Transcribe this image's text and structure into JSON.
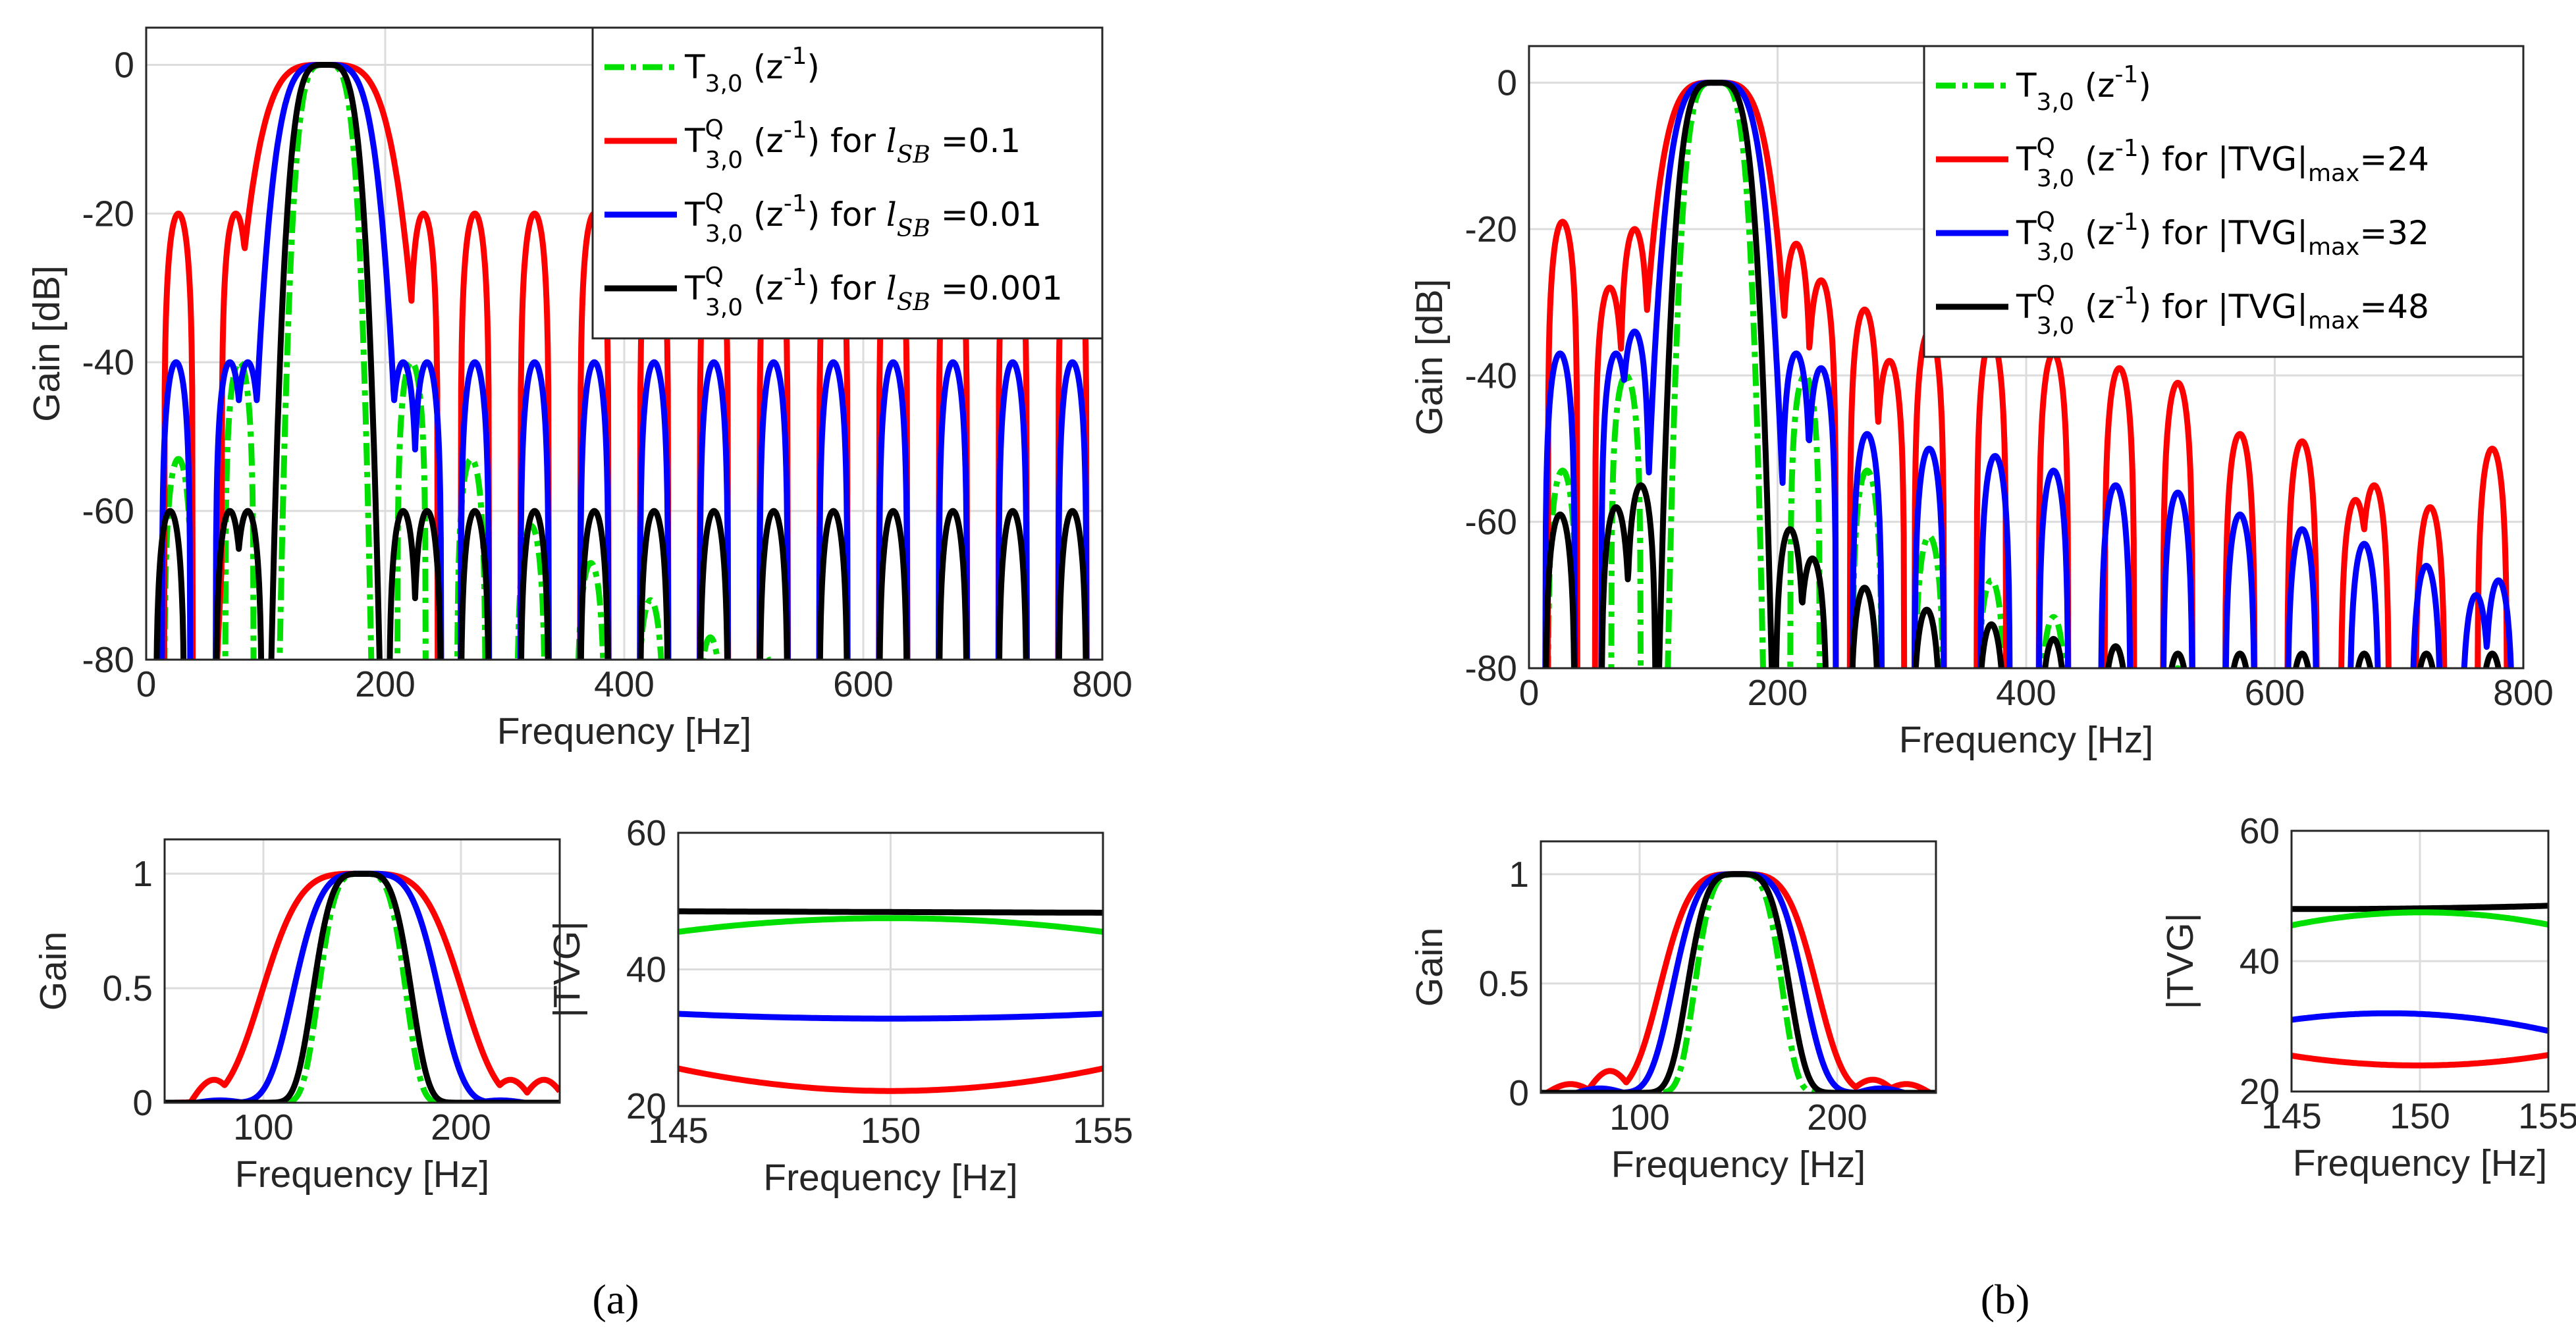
{
  "figure": {
    "panel_labels": [
      "(a)",
      "(b)"
    ]
  },
  "colors": {
    "green": "#00e000",
    "red": "#ff0000",
    "blue": "#0000ff",
    "black": "#000000"
  },
  "chart_data": [
    {
      "type": "line",
      "panel": "a-main",
      "xlabel": "Frequency [Hz]",
      "ylabel": "Gain [dB]",
      "xlim": [
        0,
        800
      ],
      "ylim": [
        -80,
        5
      ],
      "xticks": [
        0,
        200,
        400,
        600,
        800
      ],
      "yticks": [
        0,
        -20,
        -40,
        -60,
        -80
      ],
      "legend": [
        {
          "series": "green",
          "style": "dashdot",
          "main": "T",
          "sub": "3,0",
          "sup": "",
          "tail": " (z",
          "tailsup": "-1",
          "end": ")"
        },
        {
          "series": "red",
          "style": "solid",
          "main": "T",
          "sub": "3,0",
          "sup": "Q",
          "tail": " (z",
          "tailsup": "-1",
          "end": ") for ",
          "it": "l",
          "itsub": "SB",
          "value": " =0.1"
        },
        {
          "series": "blue",
          "style": "solid",
          "main": "T",
          "sub": "3,0",
          "sup": "Q",
          "tail": " (z",
          "tailsup": "-1",
          "end": ") for ",
          "it": "l",
          "itsub": "SB",
          "value": " =0.01"
        },
        {
          "series": "black",
          "style": "solid",
          "main": "T",
          "sub": "3,0",
          "sup": "Q",
          "tail": " (z",
          "tailsup": "-1",
          "end": ") for ",
          "it": "l",
          "itsub": "SB",
          "value": " =0.001"
        }
      ],
      "series": [
        {
          "name": "green",
          "kind": "dB",
          "main": [
            150,
            0,
            22
          ],
          "lobes": [
            [
              27,
              -53
            ],
            [
              78,
              -40
            ],
            [
              222,
              -40
            ],
            [
              272,
              -53
            ],
            [
              322,
              -62
            ],
            [
              372,
              -67
            ],
            [
              422,
              -72
            ],
            [
              472,
              -77
            ],
            [
              522,
              -80
            ]
          ]
        },
        {
          "name": "red",
          "kind": "dB",
          "main": [
            150,
            0,
            52
          ],
          "lobes": [
            [
              27,
              -20
            ],
            [
              75,
              -20
            ],
            [
              210,
              -20
            ],
            [
              232,
              -20
            ],
            [
              275,
              -20
            ],
            [
              325,
              -20
            ],
            [
              375,
              -20
            ],
            [
              425,
              -20
            ],
            [
              475,
              -20
            ],
            [
              525,
              -20
            ],
            [
              575,
              -20
            ],
            [
              625,
              -20
            ],
            [
              675,
              -20
            ],
            [
              725,
              -20
            ],
            [
              775,
              -20
            ]
          ]
        },
        {
          "name": "blue",
          "kind": "dB",
          "main": [
            150,
            0,
            38
          ],
          "lobes": [
            [
              25,
              -40
            ],
            [
              70,
              -40
            ],
            [
              85,
              -40
            ],
            [
              215,
              -40
            ],
            [
              235,
              -40
            ],
            [
              275,
              -40
            ],
            [
              325,
              -40
            ],
            [
              375,
              -40
            ],
            [
              425,
              -40
            ],
            [
              475,
              -40
            ],
            [
              525,
              -40
            ],
            [
              575,
              -40
            ],
            [
              625,
              -40
            ],
            [
              675,
              -40
            ],
            [
              725,
              -40
            ],
            [
              775,
              -40
            ]
          ]
        },
        {
          "name": "black",
          "kind": "dB",
          "main": [
            150,
            0,
            26
          ],
          "lobes": [
            [
              20,
              -60
            ],
            [
              70,
              -60
            ],
            [
              85,
              -60
            ],
            [
              215,
              -60
            ],
            [
              235,
              -60
            ],
            [
              275,
              -60
            ],
            [
              325,
              -60
            ],
            [
              375,
              -60
            ],
            [
              425,
              -60
            ],
            [
              475,
              -60
            ],
            [
              525,
              -60
            ],
            [
              575,
              -60
            ],
            [
              625,
              -60
            ],
            [
              675,
              -60
            ],
            [
              725,
              -60
            ],
            [
              775,
              -60
            ]
          ]
        }
      ]
    },
    {
      "type": "line",
      "panel": "b-main",
      "xlabel": "Frequency [Hz]",
      "ylabel": "Gain [dB]",
      "xlim": [
        0,
        800
      ],
      "ylim": [
        -80,
        5
      ],
      "xticks": [
        0,
        200,
        400,
        600,
        800
      ],
      "yticks": [
        0,
        -20,
        -40,
        -60,
        -80
      ],
      "legend": [
        {
          "series": "green",
          "style": "dashdot",
          "main": "T",
          "sub": "3,0",
          "sup": "",
          "tail": " (z",
          "tailsup": "-1",
          "end": ")"
        },
        {
          "series": "red",
          "style": "solid",
          "main": "T",
          "sub": "3,0",
          "sup": "Q",
          "tail": " (z",
          "tailsup": "-1",
          "end": ") for |TVG|",
          "itsub": "max",
          "value": "=24"
        },
        {
          "series": "blue",
          "style": "solid",
          "main": "T",
          "sub": "3,0",
          "sup": "Q",
          "tail": " (z",
          "tailsup": "-1",
          "end": ") for |TVG|",
          "itsub": "max",
          "value": "=32"
        },
        {
          "series": "black",
          "style": "solid",
          "main": "T",
          "sub": "3,0",
          "sup": "Q",
          "tail": " (z",
          "tailsup": "-1",
          "end": ") for |TVG|",
          "itsub": "max",
          "value": "=48"
        }
      ],
      "series": [
        {
          "name": "green",
          "kind": "dB",
          "main": [
            150,
            0,
            22
          ],
          "lobes": [
            [
              27,
              -53
            ],
            [
              78,
              -40
            ],
            [
              222,
              -40
            ],
            [
              272,
              -53
            ],
            [
              322,
              -62
            ],
            [
              372,
              -68
            ],
            [
              422,
              -73
            ],
            [
              472,
              -77
            ],
            [
              522,
              -80
            ]
          ]
        },
        {
          "name": "red",
          "kind": "dB",
          "main": [
            150,
            0,
            40
          ],
          "lobes": [
            [
              27,
              -19
            ],
            [
              65,
              -28
            ],
            [
              85,
              -20
            ],
            [
              215,
              -22
            ],
            [
              235,
              -27
            ],
            [
              270,
              -31
            ],
            [
              290,
              -38
            ],
            [
              322,
              -34
            ],
            [
              372,
              -35
            ],
            [
              422,
              -37
            ],
            [
              475,
              -39
            ],
            [
              522,
              -41
            ],
            [
              572,
              -48
            ],
            [
              622,
              -49
            ],
            [
              665,
              -57
            ],
            [
              680,
              -55
            ],
            [
              725,
              -58
            ],
            [
              775,
              -50
            ]
          ]
        },
        {
          "name": "blue",
          "kind": "dB",
          "main": [
            150,
            0,
            34
          ],
          "lobes": [
            [
              25,
              -37
            ],
            [
              70,
              -37
            ],
            [
              85,
              -34
            ],
            [
              215,
              -37
            ],
            [
              235,
              -39
            ],
            [
              272,
              -48
            ],
            [
              322,
              -50
            ],
            [
              375,
              -51
            ],
            [
              422,
              -53
            ],
            [
              472,
              -55
            ],
            [
              522,
              -56
            ],
            [
              572,
              -59
            ],
            [
              622,
              -61
            ],
            [
              672,
              -63
            ],
            [
              722,
              -66
            ],
            [
              762,
              -70
            ],
            [
              780,
              -68
            ]
          ]
        },
        {
          "name": "black",
          "kind": "dB",
          "main": [
            150,
            0,
            26
          ],
          "lobes": [
            [
              25,
              -59
            ],
            [
              70,
              -58
            ],
            [
              90,
              -55
            ],
            [
              210,
              -61
            ],
            [
              228,
              -65
            ],
            [
              270,
              -69
            ],
            [
              320,
              -72
            ],
            [
              372,
              -74
            ],
            [
              422,
              -76
            ],
            [
              472,
              -77
            ],
            [
              522,
              -78
            ],
            [
              572,
              -78
            ],
            [
              622,
              -78
            ],
            [
              672,
              -78
            ],
            [
              722,
              -78
            ],
            [
              775,
              -78
            ]
          ]
        }
      ]
    },
    {
      "type": "line",
      "panel": "a-gain",
      "xlabel": "Frequency [Hz]",
      "ylabel": "Gain",
      "xlim": [
        50,
        250
      ],
      "ylim": [
        0,
        1.15
      ],
      "xticks": [
        100,
        200
      ],
      "yticks": [
        0,
        0.5,
        1
      ],
      "yticklabels": [
        "0",
        "0.5",
        "1"
      ],
      "series": [
        {
          "name": "green",
          "kind": "lin",
          "main": [
            150,
            1.0,
            24
          ],
          "lobes": []
        },
        {
          "name": "red",
          "kind": "lin",
          "main": [
            150,
            1.0,
            55
          ],
          "lobes": [
            [
              75,
              0.1
            ],
            [
              225,
              0.1
            ],
            [
              242,
              0.1
            ]
          ]
        },
        {
          "name": "blue",
          "kind": "lin",
          "main": [
            152,
            1.0,
            40
          ],
          "lobes": [
            [
              78,
              0.01
            ],
            [
              220,
              0.01
            ]
          ]
        },
        {
          "name": "black",
          "kind": "lin",
          "main": [
            150,
            1.0,
            27
          ],
          "lobes": []
        }
      ]
    },
    {
      "type": "line",
      "panel": "a-tvg",
      "xlabel": "Frequency [Hz]",
      "ylabel": "|TVG|",
      "xlim": [
        145,
        155
      ],
      "ylim": [
        20,
        60
      ],
      "xticks": [
        145,
        150,
        155
      ],
      "yticks": [
        20,
        40,
        60
      ],
      "series": [
        {
          "name": "black",
          "x": [
            145,
            150,
            155
          ],
          "y": [
            48.5,
            48.4,
            48.3
          ]
        },
        {
          "name": "green",
          "x": [
            145,
            150,
            155
          ],
          "y": [
            45.5,
            47.5,
            45.5
          ]
        },
        {
          "name": "blue",
          "x": [
            145,
            150,
            155
          ],
          "y": [
            33.5,
            32.8,
            33.5
          ]
        },
        {
          "name": "red",
          "x": [
            145,
            150,
            155
          ],
          "y": [
            25.5,
            22.2,
            25.5
          ]
        }
      ]
    },
    {
      "type": "line",
      "panel": "b-gain",
      "xlabel": "Frequency [Hz]",
      "ylabel": "Gain",
      "xlim": [
        50,
        250
      ],
      "ylim": [
        0,
        1.15
      ],
      "xticks": [
        100,
        200
      ],
      "yticks": [
        0,
        0.5,
        1
      ],
      "yticklabels": [
        "0",
        "0.5",
        "1"
      ],
      "series": [
        {
          "name": "green",
          "kind": "lin",
          "main": [
            150,
            1.0,
            24
          ],
          "lobes": []
        },
        {
          "name": "red",
          "kind": "lin",
          "main": [
            150,
            1.0,
            43
          ],
          "lobes": [
            [
              65,
              0.04
            ],
            [
              85,
              0.1
            ],
            [
              218,
              0.06
            ],
            [
              235,
              0.04
            ]
          ]
        },
        {
          "name": "blue",
          "kind": "lin",
          "main": [
            150,
            1.0,
            36
          ],
          "lobes": [
            [
              80,
              0.02
            ],
            [
              222,
              0.02
            ]
          ]
        },
        {
          "name": "black",
          "kind": "lin",
          "main": [
            150,
            1.0,
            28
          ],
          "lobes": []
        }
      ]
    },
    {
      "type": "line",
      "panel": "b-tvg",
      "xlabel": "Frequency [Hz]",
      "ylabel": "|TVG|",
      "xlim": [
        145,
        155
      ],
      "ylim": [
        20,
        60
      ],
      "xticks": [
        145,
        150,
        155
      ],
      "yticks": [
        20,
        40,
        60
      ],
      "series": [
        {
          "name": "black",
          "x": [
            145,
            150,
            155
          ],
          "y": [
            48.0,
            48.1,
            48.5
          ]
        },
        {
          "name": "green",
          "x": [
            145,
            149,
            155
          ],
          "y": [
            45.5,
            47.4,
            45.6
          ]
        },
        {
          "name": "blue",
          "x": [
            145,
            149,
            155
          ],
          "y": [
            31.0,
            32.0,
            29.3
          ]
        },
        {
          "name": "red",
          "x": [
            145,
            150,
            155
          ],
          "y": [
            25.5,
            24.0,
            25.6
          ]
        }
      ]
    }
  ]
}
